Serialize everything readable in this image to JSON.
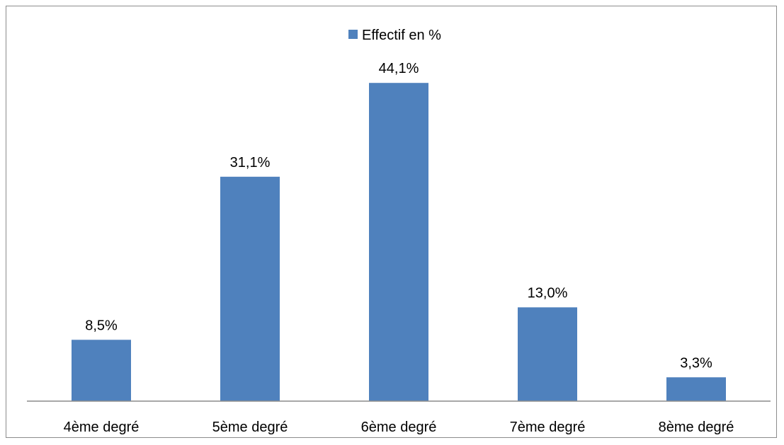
{
  "chart_data": {
    "type": "bar",
    "categories": [
      "4ème degré",
      "5ème degré",
      "6ème degré",
      "7ème degré",
      "8ème degré"
    ],
    "series": [
      {
        "name": "Effectif en %",
        "values": [
          8.5,
          31.1,
          44.1,
          13.0,
          3.3
        ],
        "labels": [
          "8,5%",
          "31,1%",
          "44,1%",
          "13,0%",
          "3,3%"
        ],
        "color": "#4f81bd"
      }
    ],
    "title": "",
    "xlabel": "",
    "ylabel": "",
    "ylim": [
      0,
      50
    ],
    "grid": false,
    "legend_position": "top-center",
    "value_axis_visible": false
  }
}
